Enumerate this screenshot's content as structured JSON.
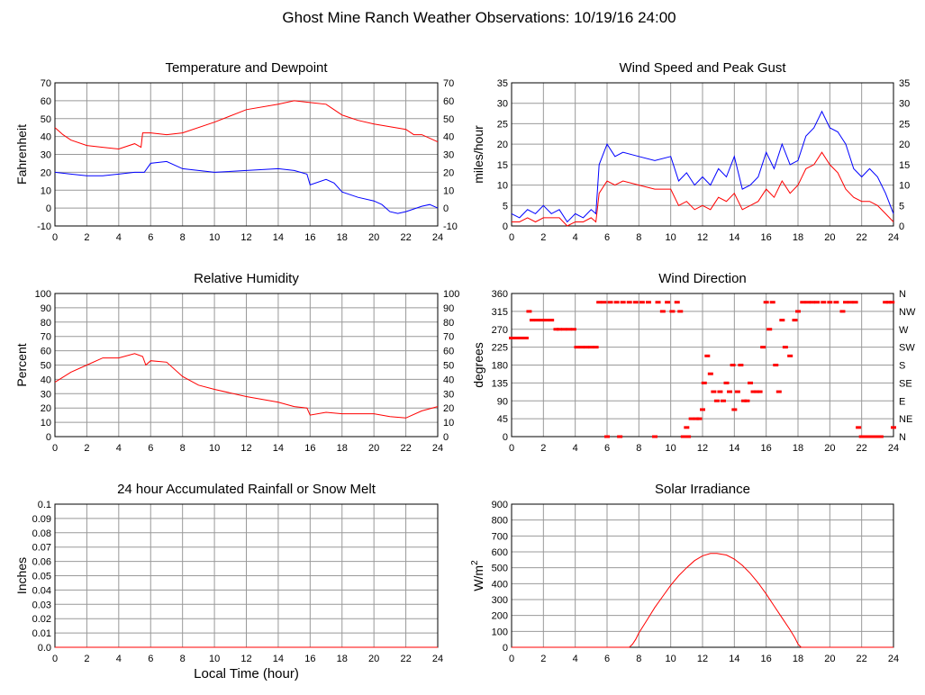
{
  "title": "Ghost Mine Ranch Weather Observations: 10/19/16 24:00",
  "colors": {
    "red": "#ff0000",
    "blue": "#0000ff",
    "grid": "#999999"
  },
  "chart_data": [
    {
      "type": "line",
      "title": "Temperature and Dewpoint",
      "ylabel": "Fahrenheit",
      "xlim": [
        0,
        24
      ],
      "ylim": [
        -10,
        70
      ],
      "xticks": [
        0,
        2,
        4,
        6,
        8,
        10,
        12,
        14,
        16,
        18,
        20,
        22,
        24
      ],
      "yticks": [
        -10,
        0,
        10,
        20,
        30,
        40,
        50,
        60,
        70
      ],
      "yticks_right": [
        -10,
        0,
        10,
        20,
        30,
        40,
        50,
        60,
        70
      ],
      "series": [
        {
          "color": "#ff0000",
          "x": [
            0,
            0.5,
            1,
            2,
            3,
            4,
            5.0,
            5.4,
            5.5,
            6,
            7,
            8,
            10,
            12,
            14,
            15,
            16,
            17,
            17.5,
            18,
            19,
            20,
            22,
            22.5,
            23,
            24
          ],
          "y": [
            45,
            41,
            38,
            35,
            34,
            33,
            36,
            34,
            42,
            42,
            41,
            42,
            48,
            55,
            58,
            60,
            59,
            58,
            55,
            52,
            49,
            47,
            44,
            41,
            41,
            37
          ]
        },
        {
          "color": "#0000ff",
          "x": [
            0,
            1,
            2,
            3,
            4,
            5,
            5.6,
            6,
            7,
            8,
            10,
            12,
            14,
            15,
            15.8,
            16,
            17,
            17.5,
            18,
            19,
            20,
            20.5,
            21,
            21.5,
            22,
            23,
            23.5,
            24
          ],
          "y": [
            20,
            19,
            18,
            18,
            19,
            20,
            20,
            25,
            26,
            22,
            20,
            21,
            22,
            21,
            19,
            13,
            16,
            14,
            9,
            6,
            4,
            2,
            -2,
            -3,
            -2,
            1,
            2,
            0
          ]
        }
      ]
    },
    {
      "type": "line",
      "title": "Wind Speed and Peak Gust",
      "ylabel": "miles/hour",
      "xlim": [
        0,
        24
      ],
      "ylim": [
        0,
        35
      ],
      "xticks": [
        0,
        2,
        4,
        6,
        8,
        10,
        12,
        14,
        16,
        18,
        20,
        22,
        24
      ],
      "yticks": [
        0,
        5,
        10,
        15,
        20,
        25,
        30,
        35
      ],
      "yticks_right": [
        0,
        5,
        10,
        15,
        20,
        25,
        30,
        35
      ],
      "series": [
        {
          "color": "#0000ff",
          "x": [
            0,
            0.5,
            1,
            1.5,
            2,
            2.5,
            3,
            3.5,
            4,
            4.5,
            5,
            5.3,
            5.5,
            6,
            6.5,
            7,
            8,
            9,
            10,
            10.5,
            11,
            11.5,
            12,
            12.5,
            13,
            13.5,
            14,
            14.5,
            15,
            15.5,
            16,
            16.5,
            17,
            17.5,
            18,
            18.5,
            19,
            19.5,
            20,
            20.5,
            21,
            21.5,
            22,
            22.5,
            23,
            23.5,
            24
          ],
          "y": [
            3,
            2,
            4,
            3,
            5,
            3,
            4,
            1,
            3,
            2,
            4,
            3,
            15,
            20,
            17,
            18,
            17,
            16,
            17,
            11,
            13,
            10,
            12,
            10,
            14,
            12,
            17,
            9,
            10,
            12,
            18,
            14,
            20,
            15,
            16,
            22,
            24,
            28,
            24,
            23,
            20,
            14,
            12,
            14,
            12,
            8,
            3
          ]
        },
        {
          "color": "#ff0000",
          "x": [
            0,
            0.5,
            1,
            1.5,
            2,
            2.5,
            3,
            3.5,
            4,
            4.5,
            5,
            5.3,
            5.5,
            6,
            6.5,
            7,
            8,
            9,
            10,
            10.5,
            11,
            11.5,
            12,
            12.5,
            13,
            13.5,
            14,
            14.5,
            15,
            15.5,
            16,
            16.5,
            17,
            17.5,
            18,
            18.5,
            19,
            19.5,
            20,
            20.5,
            21,
            21.5,
            22,
            22.5,
            23,
            23.5,
            24
          ],
          "y": [
            1,
            1,
            2,
            1,
            2,
            2,
            2,
            0,
            1,
            1,
            2,
            1,
            8,
            11,
            10,
            11,
            10,
            9,
            9,
            5,
            6,
            4,
            5,
            4,
            7,
            6,
            8,
            4,
            5,
            6,
            9,
            7,
            11,
            8,
            10,
            14,
            15,
            18,
            15,
            13,
            9,
            7,
            6,
            6,
            5,
            3,
            1
          ]
        }
      ]
    },
    {
      "type": "line",
      "title": "Relative Humidity",
      "ylabel": "Percent",
      "xlim": [
        0,
        24
      ],
      "ylim": [
        0,
        100
      ],
      "xticks": [
        0,
        2,
        4,
        6,
        8,
        10,
        12,
        14,
        16,
        18,
        20,
        22,
        24
      ],
      "yticks": [
        0,
        10,
        20,
        30,
        40,
        50,
        60,
        70,
        80,
        90,
        100
      ],
      "yticks_right": [
        0,
        10,
        20,
        30,
        40,
        50,
        60,
        70,
        80,
        90,
        100
      ],
      "series": [
        {
          "color": "#ff0000",
          "x": [
            0,
            1,
            2,
            3,
            4,
            5,
            5.5,
            5.7,
            6,
            7,
            8,
            9,
            10,
            12,
            14,
            15,
            15.8,
            16,
            17,
            18,
            20,
            21,
            22,
            23,
            24
          ],
          "y": [
            38,
            45,
            50,
            55,
            55,
            58,
            56,
            50,
            53,
            52,
            42,
            36,
            33,
            28,
            24,
            21,
            20,
            15,
            17,
            16,
            16,
            14,
            13,
            18,
            21
          ]
        }
      ]
    },
    {
      "type": "scatter",
      "title": "Wind Direction",
      "ylabel": "degrees",
      "xlim": [
        0,
        24
      ],
      "ylim": [
        0,
        360
      ],
      "xticks": [
        0,
        2,
        4,
        6,
        8,
        10,
        12,
        14,
        16,
        18,
        20,
        22,
        24
      ],
      "yticks": [
        0,
        45,
        90,
        135,
        180,
        225,
        270,
        315,
        360
      ],
      "yticks_right_labels": [
        "N",
        "NE",
        "E",
        "SE",
        "S",
        "SW",
        "W",
        "NW",
        "N"
      ],
      "series": [
        {
          "color": "#ff0000",
          "x": [
            0,
            0.3,
            0.6,
            0.9,
            1.1,
            1.3,
            1.6,
            1.9,
            2.2,
            2.5,
            2.8,
            3.0,
            3.3,
            3.6,
            3.9,
            4.1,
            4.4,
            4.7,
            5.0,
            5.3,
            5.5,
            5.8,
            6.0,
            6.2,
            6.6,
            6.8,
            7.0,
            7.4,
            7.8,
            8.2,
            8.6,
            9.0,
            9.2,
            9.5,
            9.8,
            10.1,
            10.4,
            10.6,
            10.8,
            11.0,
            11.1,
            11.3,
            11.6,
            11.8,
            12.0,
            12.1,
            12.3,
            12.5,
            12.7,
            12.9,
            13.1,
            13.3,
            13.5,
            13.7,
            13.9,
            14.0,
            14.2,
            14.4,
            14.6,
            14.8,
            15.0,
            15.2,
            15.4,
            15.6,
            15.8,
            16.0,
            16.2,
            16.4,
            16.6,
            16.8,
            17.0,
            17.2,
            17.5,
            17.8,
            18.0,
            18.3,
            18.6,
            18.9,
            19.2,
            19.6,
            20.0,
            20.4,
            20.8,
            21.0,
            21.3,
            21.6,
            21.8,
            22.0,
            22.3,
            22.6,
            22.9,
            23.2,
            23.5,
            23.7,
            23.9,
            24.0
          ],
          "y": [
            248,
            248,
            248,
            248,
            315,
            293,
            293,
            293,
            293,
            293,
            270,
            270,
            270,
            270,
            270,
            225,
            225,
            225,
            225,
            225,
            338,
            338,
            0,
            338,
            338,
            0,
            338,
            338,
            338,
            338,
            338,
            0,
            338,
            315,
            338,
            315,
            338,
            315,
            0,
            23,
            0,
            45,
            45,
            45,
            68,
            135,
            203,
            158,
            113,
            90,
            113,
            90,
            135,
            113,
            180,
            68,
            113,
            180,
            90,
            90,
            135,
            113,
            113,
            113,
            225,
            338,
            270,
            338,
            180,
            113,
            293,
            225,
            203,
            293,
            315,
            338,
            338,
            338,
            338,
            338,
            338,
            338,
            315,
            338,
            338,
            338,
            23,
            0,
            0,
            0,
            0,
            0,
            338,
            338,
            338,
            23
          ]
        }
      ]
    },
    {
      "type": "line",
      "title": "24 hour Accumulated Rainfall or Snow Melt",
      "ylabel": "Inches",
      "xlabel": "Local Time (hour)",
      "xlim": [
        0,
        24
      ],
      "ylim": [
        0,
        0.1
      ],
      "xticks": [
        0,
        2,
        4,
        6,
        8,
        10,
        12,
        14,
        16,
        18,
        20,
        22,
        24
      ],
      "yticks": [
        0.0,
        0.01,
        0.02,
        0.03,
        0.04,
        0.05,
        0.06,
        0.07,
        0.08,
        0.09,
        0.1
      ],
      "ytick_labels": [
        "0.0",
        "0.01",
        "0.02",
        "0.03",
        "0.04",
        "0.05",
        "0.06",
        "0.07",
        "0.08",
        "0.09",
        "0.1"
      ],
      "series": [
        {
          "color": "#ff0000",
          "x": [
            0,
            24
          ],
          "y": [
            0,
            0
          ]
        }
      ]
    },
    {
      "type": "line",
      "title": "Solar Irradiance",
      "ylabel": "W/m",
      "ylabel_sup": "2",
      "xlim": [
        0,
        24
      ],
      "ylim": [
        0,
        900
      ],
      "xticks": [
        0,
        2,
        4,
        6,
        8,
        10,
        12,
        14,
        16,
        18,
        20,
        22,
        24
      ],
      "yticks": [
        0,
        100,
        200,
        300,
        400,
        500,
        600,
        700,
        800,
        900
      ],
      "series": [
        {
          "color": "#ff0000",
          "x": [
            0,
            7.4,
            7.6,
            7.8,
            8,
            8.5,
            9,
            9.5,
            10,
            10.5,
            11,
            11.5,
            12,
            12.5,
            12.9,
            13.5,
            14,
            14.5,
            15,
            15.5,
            16,
            16.5,
            17,
            17.5,
            17.8,
            18,
            18.2,
            24
          ],
          "y": [
            0,
            0,
            20,
            50,
            90,
            170,
            250,
            320,
            390,
            450,
            500,
            545,
            575,
            590,
            590,
            580,
            555,
            515,
            465,
            405,
            335,
            260,
            185,
            110,
            60,
            20,
            0,
            0
          ]
        }
      ]
    }
  ]
}
